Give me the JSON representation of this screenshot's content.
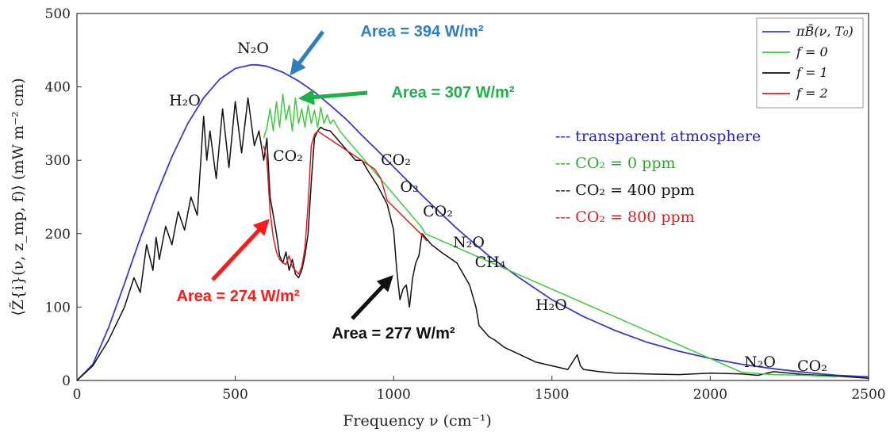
{
  "chart_data": {
    "type": "line",
    "xlabel": "Frequency ν (cm⁻¹)",
    "ylabel": "⟨Z̃{i}(ν, z_mp, f)⟩ (mW m⁻² cm)",
    "xlim": [
      0,
      2500
    ],
    "ylim": [
      0,
      500
    ],
    "xticks": [
      0,
      500,
      1000,
      1500,
      2000,
      2500
    ],
    "yticks": [
      0,
      100,
      200,
      300,
      400,
      500
    ],
    "grid": false,
    "legend_position": "top-right",
    "legend": [
      {
        "label": "πB̃(ν, T₀)",
        "color": "#3b3bc4"
      },
      {
        "label": "f = 0",
        "color": "#3ccc3c"
      },
      {
        "label": "f = 1",
        "color": "#111111"
      },
      {
        "label": "f = 2",
        "color": "#d62222"
      }
    ],
    "notes": [
      {
        "text": "--- transparent atmosphere",
        "color": "#2323c8"
      },
      {
        "text": "--- CO₂ = 0 ppm",
        "color": "#2aaa2a"
      },
      {
        "text": "--- CO₂ = 400 ppm",
        "color": "#111111"
      },
      {
        "text": "--- CO₂ = 800 ppm",
        "color": "#d62222"
      }
    ],
    "series": [
      {
        "name": "πB̃(ν, T₀)",
        "color": "#3b3bc4",
        "x": [
          0,
          50,
          100,
          150,
          200,
          250,
          300,
          350,
          400,
          450,
          500,
          550,
          570,
          600,
          650,
          700,
          750,
          800,
          850,
          900,
          950,
          1000,
          1100,
          1200,
          1300,
          1400,
          1500,
          1600,
          1700,
          1800,
          1900,
          2000,
          2100,
          2200,
          2300,
          2400,
          2500
        ],
        "y": [
          0,
          22,
          72,
          132,
          194,
          252,
          305,
          350,
          385,
          410,
          425,
          430,
          430,
          428,
          420,
          408,
          393,
          375,
          356,
          334,
          313,
          291,
          248,
          207,
          170,
          139,
          110,
          87,
          68,
          52,
          40,
          30,
          22,
          16,
          11,
          7,
          5
        ]
      },
      {
        "name": "f = 0",
        "color": "#3ccc3c",
        "x": [
          590,
          600,
          610,
          620,
          630,
          640,
          650,
          660,
          670,
          680,
          690,
          700,
          710,
          720,
          730,
          740,
          750,
          760,
          770,
          780,
          790,
          800,
          810,
          830,
          1090,
          1100,
          2100,
          2200,
          2300,
          2400
        ],
        "y": [
          330,
          345,
          370,
          340,
          380,
          345,
          390,
          355,
          375,
          340,
          385,
          350,
          370,
          345,
          375,
          350,
          368,
          345,
          372,
          350,
          362,
          350,
          355,
          340,
          208,
          200,
          11,
          8,
          7,
          5
        ]
      },
      {
        "name": "f = 1",
        "color": "#111111",
        "x": [
          0,
          50,
          100,
          150,
          180,
          200,
          220,
          240,
          250,
          260,
          280,
          300,
          320,
          340,
          360,
          380,
          400,
          410,
          420,
          440,
          460,
          480,
          500,
          520,
          540,
          560,
          575,
          590,
          600,
          610,
          620,
          630,
          640,
          650,
          660,
          670,
          680,
          690,
          700,
          710,
          720,
          730,
          740,
          750,
          760,
          770,
          780,
          800,
          820,
          840,
          860,
          880,
          900,
          920,
          950,
          980,
          1000,
          1010,
          1020,
          1030,
          1040,
          1050,
          1060,
          1070,
          1080,
          1090,
          1100,
          1120,
          1150,
          1200,
          1240,
          1260,
          1270,
          1300,
          1320,
          1350,
          1400,
          1450,
          1500,
          1550,
          1580,
          1590,
          1600,
          1650,
          1700,
          1800,
          1900,
          2000,
          2100,
          2150,
          2200,
          2300,
          2400,
          2500
        ],
        "y": [
          0,
          20,
          55,
          100,
          140,
          120,
          185,
          150,
          195,
          165,
          210,
          185,
          230,
          205,
          250,
          225,
          360,
          300,
          340,
          275,
          370,
          290,
          380,
          310,
          385,
          320,
          340,
          300,
          330,
          250,
          225,
          200,
          170,
          160,
          175,
          150,
          165,
          145,
          140,
          150,
          170,
          200,
          270,
          330,
          340,
          345,
          342,
          340,
          330,
          320,
          310,
          300,
          300,
          285,
          265,
          240,
          205,
          150,
          110,
          125,
          130,
          100,
          140,
          160,
          170,
          200,
          195,
          185,
          175,
          160,
          130,
          100,
          75,
          60,
          55,
          45,
          35,
          25,
          20,
          15,
          35,
          20,
          15,
          12,
          10,
          9,
          8,
          10,
          9,
          7,
          12,
          8,
          6,
          3
        ]
      },
      {
        "name": "f = 2",
        "color": "#d62222",
        "x": [
          590,
          600,
          610,
          620,
          630,
          640,
          650,
          660,
          670,
          680,
          690,
          700,
          710,
          720,
          730,
          740,
          750,
          760,
          940,
          960,
          980,
          1085,
          1095,
          1105
        ],
        "y": [
          320,
          300,
          230,
          195,
          175,
          165,
          160,
          158,
          170,
          155,
          150,
          145,
          155,
          180,
          240,
          320,
          335,
          340,
          288,
          275,
          245,
          200,
          195,
          190
        ]
      }
    ],
    "annotations": {
      "molecules": [
        {
          "id": "n2o_top",
          "text": "N₂O"
        },
        {
          "id": "h2o_left",
          "text": "H₂O"
        },
        {
          "id": "co2_band",
          "text": "CO₂"
        },
        {
          "id": "co2_960",
          "text": "CO₂"
        },
        {
          "id": "o3",
          "text": "O₃"
        },
        {
          "id": "co2_1080",
          "text": "CO₂"
        },
        {
          "id": "n2o_mid",
          "text": "N₂O"
        },
        {
          "id": "ch4",
          "text": "CH₄"
        },
        {
          "id": "h2o_right",
          "text": "H₂O"
        },
        {
          "id": "n2o_right",
          "text": "N₂O"
        },
        {
          "id": "co2_right",
          "text": "CO₂"
        }
      ],
      "areas": [
        {
          "id": "area_394",
          "text": "Area = 394 W/m²",
          "color": "#2f7fc0"
        },
        {
          "id": "area_307",
          "text": "Area = 307 W/m²",
          "color": "#1fb04a"
        },
        {
          "id": "area_274",
          "text": "Area = 274 W/m²",
          "color": "#ff1a1a"
        },
        {
          "id": "area_277",
          "text": "Area = 277 W/m²",
          "color": "#111111"
        }
      ]
    }
  }
}
